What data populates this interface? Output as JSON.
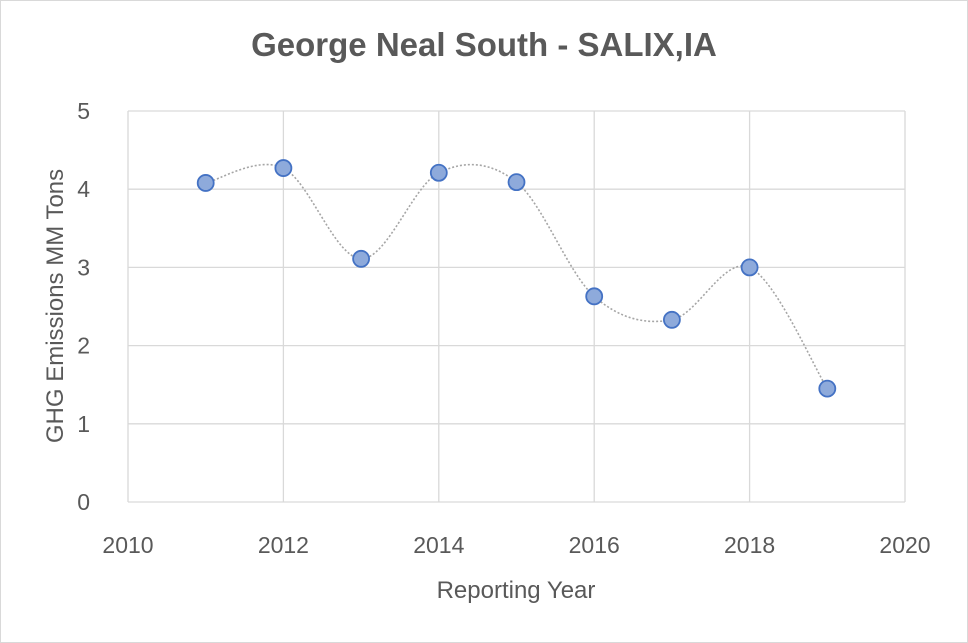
{
  "chart_data": {
    "type": "scatter",
    "title": "George Neal South - SALIX,IA",
    "xlabel": "Reporting Year",
    "ylabel": "GHG Emissions MM Tons",
    "xlim": [
      2010,
      2020
    ],
    "ylim": [
      0,
      5
    ],
    "x_ticks": [
      "2010",
      "2012",
      "2014",
      "2016",
      "2018",
      "2020"
    ],
    "y_ticks": [
      "0",
      "1",
      "2",
      "3",
      "4",
      "5"
    ],
    "grid": true,
    "trendline": "smoothed dotted line",
    "series": [
      {
        "x": [
          2011,
          2012,
          2013,
          2014,
          2015,
          2016,
          2017,
          2018,
          2019
        ],
        "y": [
          4.08,
          4.27,
          3.11,
          4.21,
          4.09,
          2.63,
          2.33,
          3.0,
          1.45
        ],
        "color": "#8eaadb",
        "edge_color": "#4472c4"
      }
    ]
  }
}
